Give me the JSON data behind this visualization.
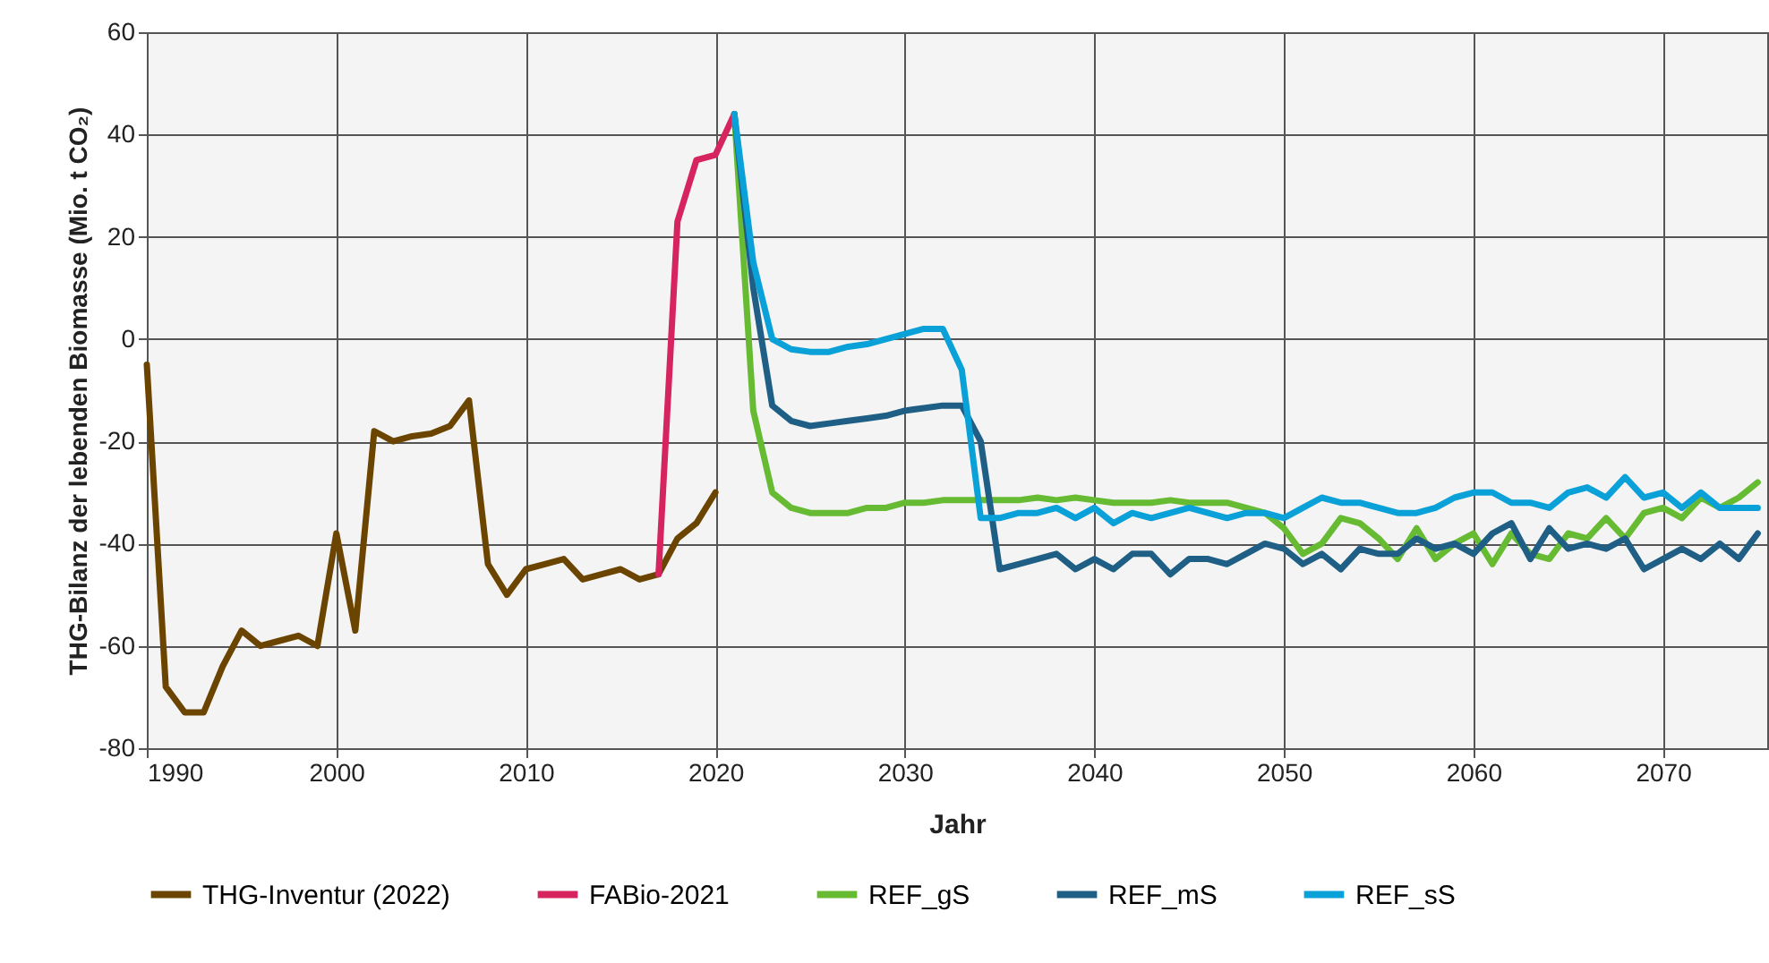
{
  "chart_data": {
    "type": "line",
    "xlabel": "Jahr",
    "ylabel": "THG-Bilanz der lebenden Biomasse (Mio. t CO₂)",
    "xlim": [
      1990,
      2075.5
    ],
    "xticks": [
      1990,
      2000,
      2010,
      2020,
      2030,
      2040,
      2050,
      2060,
      2070
    ],
    "ylim": [
      -80,
      60
    ],
    "yticks": [
      -80,
      -60,
      -40,
      -20,
      0,
      20,
      40,
      60
    ],
    "grid": true,
    "legend": "bottom",
    "marker": "none",
    "line_style": "solid",
    "series": [
      {
        "name": "THG-Inventur (2022)",
        "color": "#6b4400",
        "x": [
          1990,
          1991,
          1992,
          1993,
          1994,
          1995,
          1996,
          1997,
          1998,
          1999,
          2000,
          2001,
          2002,
          2003,
          2004,
          2005,
          2006,
          2007,
          2008,
          2009,
          2010,
          2011,
          2012,
          2013,
          2014,
          2015,
          2016,
          2017,
          2018,
          2019,
          2020
        ],
        "values": [
          -5,
          -68,
          -73,
          -73,
          -64,
          -57,
          -60,
          -59,
          -58,
          -60,
          -38,
          -57,
          -18,
          -20,
          -19,
          -18.5,
          -17,
          -12,
          -44,
          -50,
          -45,
          -44,
          -43,
          -47,
          -46,
          -45,
          -47,
          -46,
          -39,
          -36,
          -30
        ]
      },
      {
        "name": "FABio-2021",
        "color": "#d6245f",
        "x": [
          2017,
          2018,
          2019,
          2020,
          2021
        ],
        "values": [
          -46,
          23,
          35,
          36,
          44
        ]
      },
      {
        "name": "REF_gS",
        "color": "#66bb33",
        "x": [
          2021,
          2022,
          2023,
          2024,
          2025,
          2026,
          2027,
          2028,
          2029,
          2030,
          2031,
          2032,
          2033,
          2034,
          2035,
          2036,
          2037,
          2038,
          2039,
          2040,
          2041,
          2042,
          2043,
          2044,
          2045,
          2046,
          2047,
          2048,
          2049,
          2050,
          2051,
          2052,
          2053,
          2054,
          2055,
          2056,
          2057,
          2058,
          2059,
          2060,
          2061,
          2062,
          2063,
          2064,
          2065,
          2066,
          2067,
          2068,
          2069,
          2070,
          2071,
          2072,
          2073,
          2074,
          2075
        ],
        "values": [
          44,
          -14,
          -30,
          -33,
          -34,
          -34,
          -34,
          -33,
          -33,
          -32,
          -32,
          -31.5,
          -31.5,
          -31.5,
          -31.5,
          -31.5,
          -31,
          -31.5,
          -31,
          -31.5,
          -32,
          -32,
          -32,
          -31.5,
          -32,
          -32,
          -32,
          -33,
          -34,
          -37,
          -42,
          -40,
          -35,
          -36,
          -39,
          -43,
          -37,
          -43,
          -40,
          -38,
          -44,
          -38,
          -42,
          -43,
          -38,
          -39,
          -35,
          -39,
          -34,
          -33,
          -35,
          -31,
          -33,
          -31,
          -28
        ]
      },
      {
        "name": "REF_mS",
        "color": "#1f5f85",
        "x": [
          2021,
          2022,
          2023,
          2024,
          2025,
          2026,
          2027,
          2028,
          2029,
          2030,
          2031,
          2032,
          2033,
          2034,
          2035,
          2036,
          2037,
          2038,
          2039,
          2040,
          2041,
          2042,
          2043,
          2044,
          2045,
          2046,
          2047,
          2048,
          2049,
          2050,
          2051,
          2052,
          2053,
          2054,
          2055,
          2056,
          2057,
          2058,
          2059,
          2060,
          2061,
          2062,
          2063,
          2064,
          2065,
          2066,
          2067,
          2068,
          2069,
          2070,
          2071,
          2072,
          2073,
          2074,
          2075
        ],
        "values": [
          44,
          10,
          -13,
          -16,
          -17,
          -16.5,
          -16,
          -15.5,
          -15,
          -14,
          -13.5,
          -13,
          -13,
          -20,
          -45,
          -44,
          -43,
          -42,
          -45,
          -43,
          -45,
          -42,
          -42,
          -46,
          -43,
          -43,
          -44,
          -42,
          -40,
          -41,
          -44,
          -42,
          -45,
          -41,
          -42,
          -42,
          -39,
          -41,
          -40,
          -42,
          -38,
          -36,
          -43,
          -37,
          -41,
          -40,
          -41,
          -39,
          -45,
          -43,
          -41,
          -43,
          -40,
          -43,
          -38
        ]
      },
      {
        "name": "REF_sS",
        "color": "#0aa0d8",
        "x": [
          2021,
          2022,
          2023,
          2024,
          2025,
          2026,
          2027,
          2028,
          2029,
          2030,
          2031,
          2032,
          2033,
          2034,
          2035,
          2036,
          2037,
          2038,
          2039,
          2040,
          2041,
          2042,
          2043,
          2044,
          2045,
          2046,
          2047,
          2048,
          2049,
          2050,
          2051,
          2052,
          2053,
          2054,
          2055,
          2056,
          2057,
          2058,
          2059,
          2060,
          2061,
          2062,
          2063,
          2064,
          2065,
          2066,
          2067,
          2068,
          2069,
          2070,
          2071,
          2072,
          2073,
          2074,
          2075
        ],
        "values": [
          44,
          15,
          0,
          -2,
          -2.5,
          -2.5,
          -1.5,
          -1,
          0,
          1,
          2,
          2,
          -6,
          -35,
          -35,
          -34,
          -34,
          -33,
          -35,
          -33,
          -36,
          -34,
          -35,
          -34,
          -33,
          -34,
          -35,
          -34,
          -34,
          -35,
          -33,
          -31,
          -32,
          -32,
          -33,
          -34,
          -34,
          -33,
          -31,
          -30,
          -30,
          -32,
          -32,
          -33,
          -30,
          -29,
          -31,
          -27,
          -31,
          -30,
          -33,
          -30,
          -33,
          -33,
          -33
        ]
      }
    ]
  }
}
